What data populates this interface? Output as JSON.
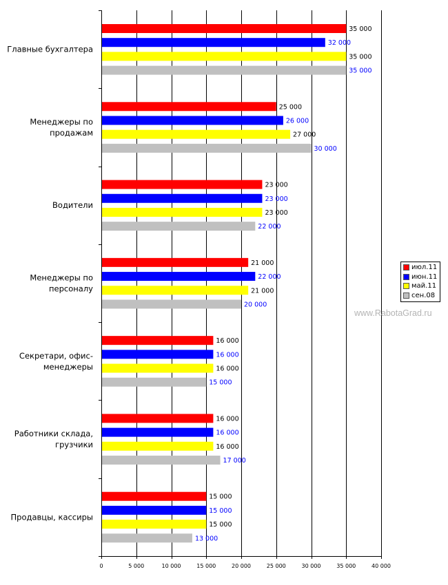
{
  "chart_data": {
    "type": "bar",
    "orientation": "horizontal",
    "categories": [
      "Главные бухгалтера",
      "Менеджеры по продажам",
      "Водители",
      "Менеджеры по персоналу",
      "Секретари, офис-менеджеры",
      "Работники склада, грузчики",
      "Продавцы, кассиры"
    ],
    "category_label_lines": [
      [
        "Главные бухгалтера"
      ],
      [
        "Менеджеры по",
        "продажам"
      ],
      [
        "Водители"
      ],
      [
        "Менеджеры по",
        "персоналу"
      ],
      [
        "Секретари, офис-",
        "менеджеры"
      ],
      [
        "Работники склада,",
        "грузчики"
      ],
      [
        "Продавцы, кассиры"
      ]
    ],
    "series": [
      {
        "name": "июл.11",
        "color": "#ff0000",
        "label_color": "#000000",
        "values": [
          35000,
          25000,
          23000,
          21000,
          16000,
          16000,
          15000
        ],
        "value_labels": [
          "35 000",
          "25 000",
          "23 000",
          "21 000",
          "16 000",
          "16 000",
          "15 000"
        ]
      },
      {
        "name": "июн.11",
        "color": "#0000ff",
        "label_color": "#0000ff",
        "values": [
          32000,
          26000,
          23000,
          22000,
          16000,
          16000,
          15000
        ],
        "value_labels": [
          "32 000",
          "26 000",
          "23 000",
          "22 000",
          "16 000",
          "16 000",
          "15 000"
        ]
      },
      {
        "name": "май.11",
        "color": "#ffff00",
        "label_color": "#000000",
        "values": [
          35000,
          27000,
          23000,
          21000,
          16000,
          16000,
          15000
        ],
        "value_labels": [
          "35 000",
          "27 000",
          "23 000",
          "21 000",
          "16 000",
          "16 000",
          "15 000"
        ]
      },
      {
        "name": "сен.08",
        "color": "#c0c0c0",
        "label_color": "#0000ff",
        "values": [
          35000,
          30000,
          22000,
          20000,
          15000,
          17000,
          13000
        ],
        "value_labels": [
          "35 000",
          "30 000",
          "22 000",
          "20 000",
          "15 000",
          "17 000",
          "13 000"
        ]
      }
    ],
    "xlim": [
      0,
      40000
    ],
    "xticks": [
      0,
      5000,
      10000,
      15000,
      20000,
      25000,
      30000,
      35000,
      40000
    ],
    "xtick_labels": [
      "0",
      "5 000",
      "10 000",
      "15 000",
      "20 000",
      "25 000",
      "30 000",
      "35 000",
      "40 000"
    ],
    "grid": "vertical",
    "legend_position": "right",
    "title": "",
    "xlabel": "",
    "ylabel": ""
  },
  "watermark": "www.RabotaGrad.ru",
  "colors": {
    "grid": "#000000",
    "axis": "#000000",
    "background": "#ffffff"
  }
}
